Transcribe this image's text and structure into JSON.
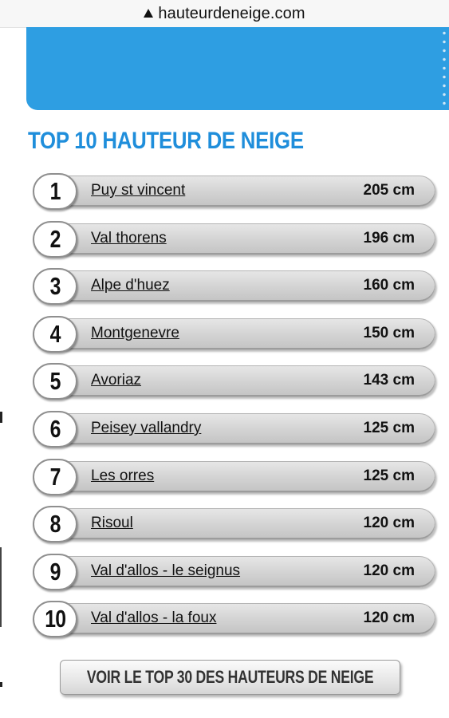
{
  "browser": {
    "domain": "hauteurdeneige.com",
    "security_icon": "warning-triangle-icon"
  },
  "colors": {
    "banner_blue": "#2e9ee2",
    "title_blue": "#1f8edb"
  },
  "section": {
    "title": "TOP 10 HAUTEUR DE NEIGE"
  },
  "ranking": [
    {
      "rank": "1",
      "resort": "Puy st vincent",
      "depth": "205 cm"
    },
    {
      "rank": "2",
      "resort": "Val thorens",
      "depth": "196 cm"
    },
    {
      "rank": "3",
      "resort": "Alpe d'huez",
      "depth": "160 cm"
    },
    {
      "rank": "4",
      "resort": "Montgenevre",
      "depth": "150 cm"
    },
    {
      "rank": "5",
      "resort": "Avoriaz",
      "depth": "143 cm"
    },
    {
      "rank": "6",
      "resort": "Peisey vallandry",
      "depth": "125 cm"
    },
    {
      "rank": "7",
      "resort": "Les orres",
      "depth": "125 cm"
    },
    {
      "rank": "8",
      "resort": "Risoul",
      "depth": "120 cm"
    },
    {
      "rank": "9",
      "resort": "Val d'allos - le seignus",
      "depth": "120 cm"
    },
    {
      "rank": "10",
      "resort": "Val d'allos - la foux",
      "depth": "120 cm"
    }
  ],
  "cta": {
    "label": "VOIR LE TOP 30 DES HAUTEURS DE NEIGE"
  }
}
